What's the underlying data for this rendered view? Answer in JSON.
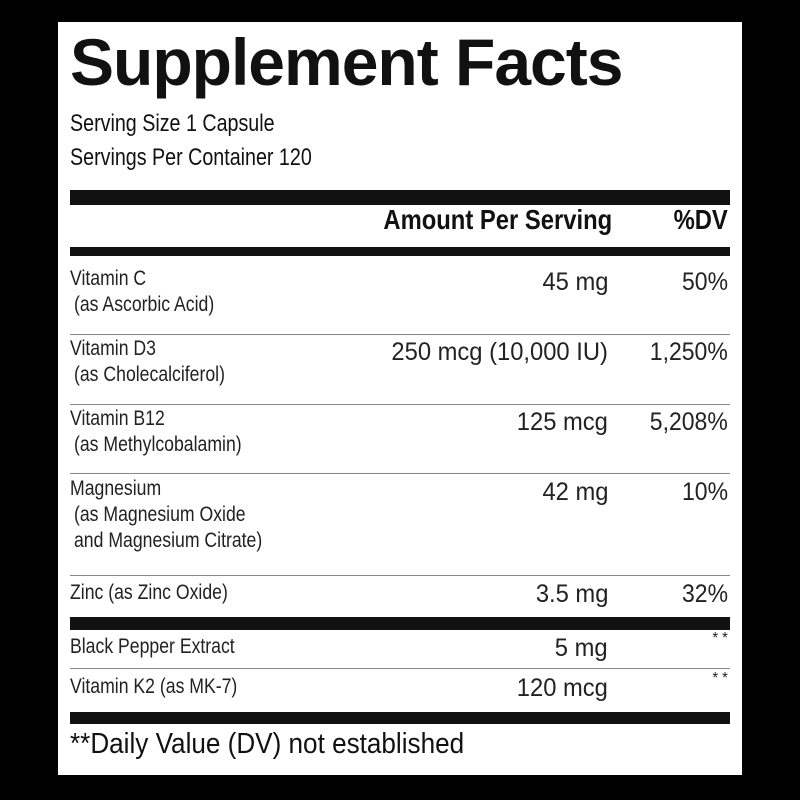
{
  "title": "Supplement Facts",
  "serving_size": "Serving Size 1 Capsule",
  "servings_per_container": "Servings Per Container 120",
  "header": {
    "amount": "Amount Per Serving",
    "dv": "%DV"
  },
  "rows": [
    {
      "name": "Vitamin C",
      "source": "(as Ascorbic Acid)",
      "amount": "45 mg",
      "dv": "50%"
    },
    {
      "name": "Vitamin D3",
      "source": "(as Cholecalciferol)",
      "amount": "250 mcg (10,000 IU)",
      "dv": "1,250%"
    },
    {
      "name": "Vitamin B12",
      "source": "(as Methylcobalamin)",
      "amount": "125 mcg",
      "dv": "5,208%"
    },
    {
      "name": "Magnesium",
      "source": "(as Magnesium Oxide",
      "source2": "and Magnesium Citrate)",
      "amount": "42 mg",
      "dv": "10%"
    },
    {
      "name": "Zinc (as Zinc Oxide)",
      "amount": "3.5 mg",
      "dv": "32%"
    }
  ],
  "other_rows": [
    {
      "name": "Black Pepper Extract",
      "amount": "5 mg",
      "dv": "* *"
    },
    {
      "name": "Vitamin K2 (as MK-7)",
      "amount": "120 mcg",
      "dv": "* *"
    }
  ],
  "footnote": "**Daily Value (DV) not established"
}
